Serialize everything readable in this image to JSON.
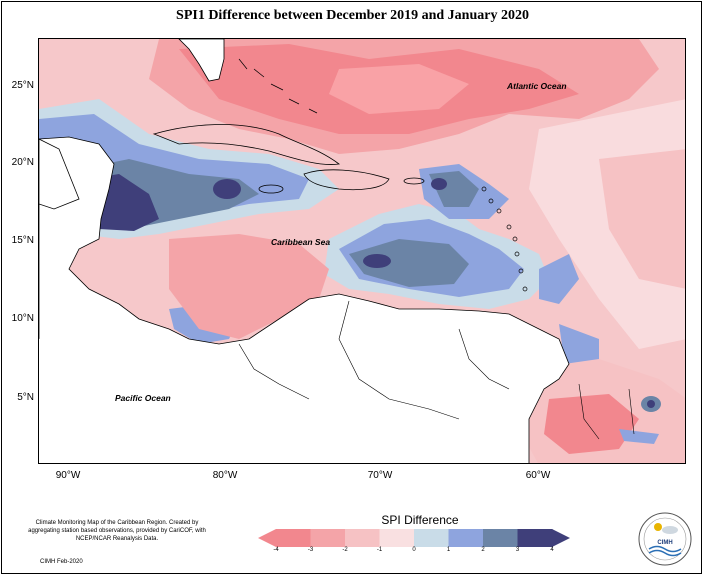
{
  "title": "SPI1 Difference between December 2019 and January 2020",
  "map": {
    "lat_labels": [
      "25°N",
      "20°N",
      "15°N",
      "10°N",
      "5°N"
    ],
    "lon_labels": [
      "90°W",
      "80°W",
      "70°W",
      "60°W"
    ],
    "labels": {
      "atlantic": "Atlantic Ocean",
      "caribbean": "Caribbean Sea",
      "pacific": "Pacific Ocean"
    }
  },
  "legend": {
    "title": "SPI Difference",
    "ticks": [
      "-4",
      "-3",
      "-2",
      "-1",
      "0",
      "1",
      "2",
      "3",
      "4"
    ],
    "colors": [
      "#f2878e",
      "#f4a4a8",
      "#f6c2c4",
      "#f9e0e1",
      "#fdf6f6",
      "#c9dce8",
      "#8ea4de",
      "#6b84a6",
      "#3f3f7a"
    ]
  },
  "credits": {
    "text": "Climate Monitoring Map of the Caribbean Region. Created by aggregating station based observations, provided by CariCOF, with NCEP/NCAR Reanalysis Data.",
    "date": "CIMH Feb-2020"
  },
  "logo": {
    "text": "CIMH"
  }
}
